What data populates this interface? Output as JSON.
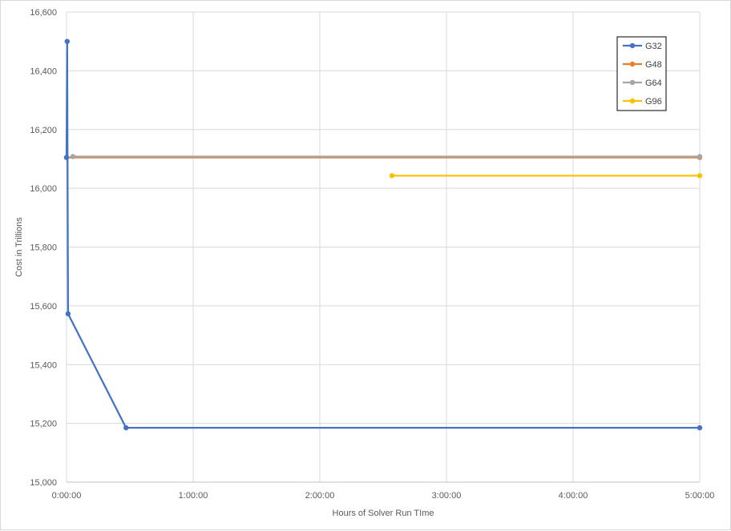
{
  "chart_data": {
    "type": "line",
    "title": "",
    "xlabel": "Hours of Solver Run TIme",
    "ylabel": "Cost in Trillions",
    "xlim": [
      0,
      5
    ],
    "ylim": [
      15000,
      16600
    ],
    "x_ticks": [
      {
        "value": 0,
        "label": "0:00:00"
      },
      {
        "value": 1,
        "label": "1:00:00"
      },
      {
        "value": 2,
        "label": "2:00:00"
      },
      {
        "value": 3,
        "label": "3:00:00"
      },
      {
        "value": 4,
        "label": "4:00:00"
      },
      {
        "value": 5,
        "label": "5:00:00"
      }
    ],
    "y_ticks": [
      {
        "value": 15000,
        "label": "15,000"
      },
      {
        "value": 15200,
        "label": "15,200"
      },
      {
        "value": 15400,
        "label": "15,400"
      },
      {
        "value": 15600,
        "label": "15,600"
      },
      {
        "value": 15800,
        "label": "15,800"
      },
      {
        "value": 16000,
        "label": "16,000"
      },
      {
        "value": 16200,
        "label": "16,200"
      },
      {
        "value": 16400,
        "label": "16,400"
      },
      {
        "value": 16600,
        "label": "16,600"
      }
    ],
    "grid": true,
    "legend_position": "top-right",
    "series": [
      {
        "name": "G32",
        "color": "#4472c4",
        "points": [
          [
            0.0,
            16105
          ],
          [
            0.005,
            16500
          ],
          [
            0.012,
            15573
          ],
          [
            0.47,
            15185
          ],
          [
            5.0,
            15185
          ]
        ]
      },
      {
        "name": "G48",
        "color": "#ed7d31",
        "points": [
          [
            0.0,
            16105
          ],
          [
            5.0,
            16105
          ]
        ]
      },
      {
        "name": "G64",
        "color": "#a5a5a5",
        "points": [
          [
            0.05,
            16108
          ],
          [
            5.0,
            16108
          ]
        ]
      },
      {
        "name": "G96",
        "color": "#ffc000",
        "points": [
          [
            2.57,
            16043
          ],
          [
            5.0,
            16043
          ]
        ]
      }
    ]
  }
}
